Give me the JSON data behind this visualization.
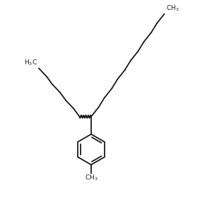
{
  "background": "#ffffff",
  "line_color": "#1a1a1a",
  "line_width": 1.3,
  "figsize": [
    3.0,
    3.0
  ],
  "dpi": 100
}
